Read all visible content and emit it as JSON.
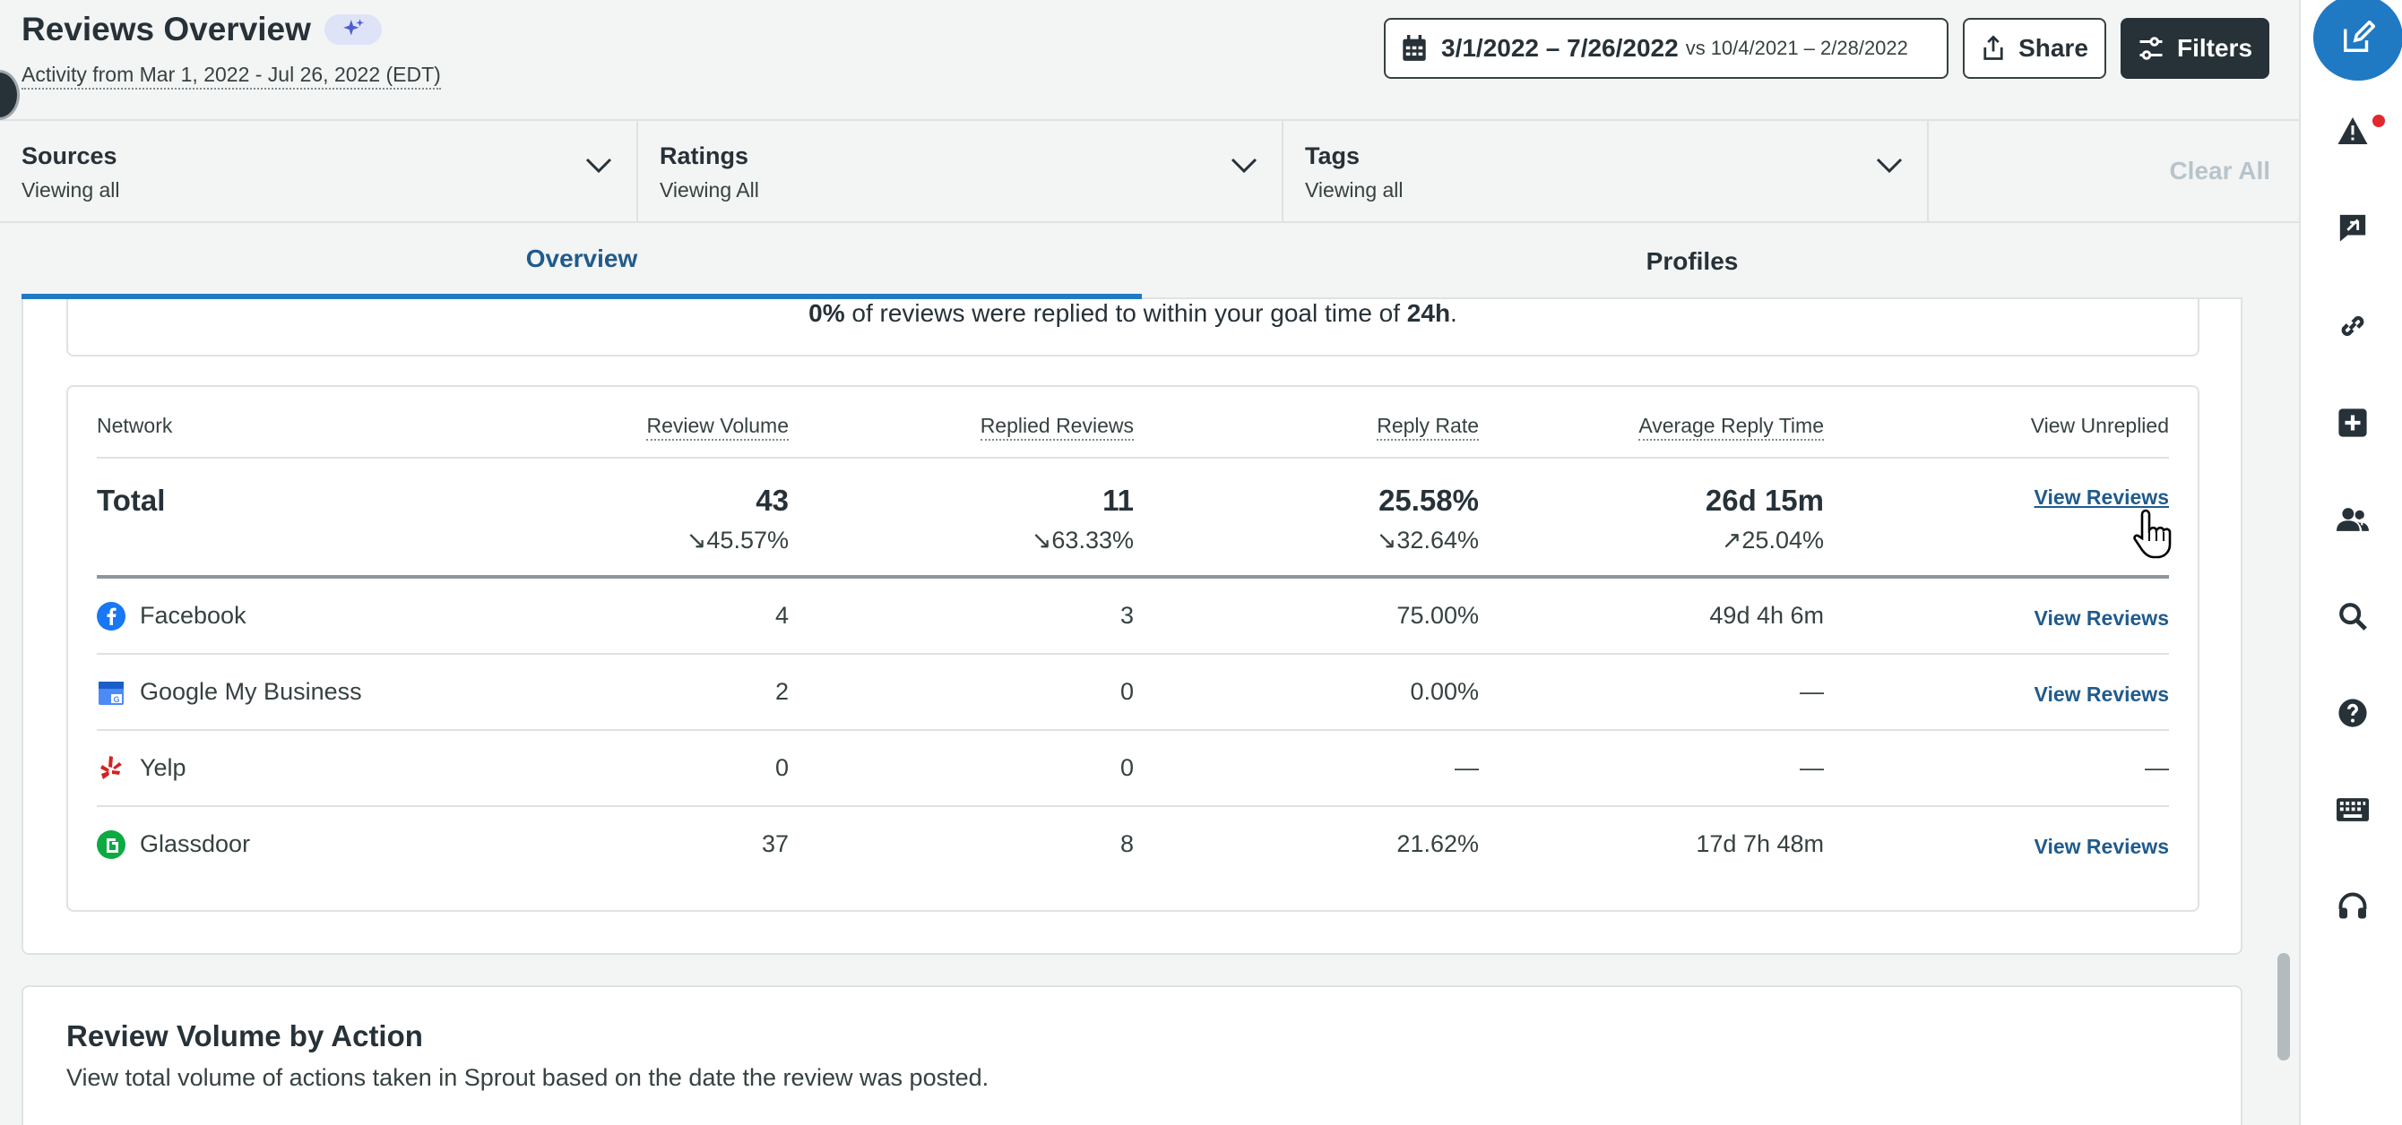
{
  "header": {
    "title": "Reviews Overview",
    "subtitle": "Activity from Mar 1, 2022 - Jul 26, 2022 (EDT)",
    "date_range": "3/1/2022 – 7/26/2022",
    "compare_prefix": "vs",
    "compare_range": "10/4/2021 – 2/28/2022",
    "share_label": "Share",
    "filters_label": "Filters"
  },
  "filters": [
    {
      "label": "Sources",
      "value": "Viewing all"
    },
    {
      "label": "Ratings",
      "value": "Viewing All"
    },
    {
      "label": "Tags",
      "value": "Viewing all"
    }
  ],
  "clear_all": "Clear All",
  "tabs": [
    {
      "label": "Overview",
      "active": true
    },
    {
      "label": "Profiles",
      "active": false
    }
  ],
  "goal": {
    "percent": "0%",
    "middle": " of reviews were replied to within your goal time of ",
    "time": "24h",
    "end": "."
  },
  "table": {
    "headers": [
      "Network",
      "Review Volume",
      "Replied Reviews",
      "Reply Rate",
      "Average Reply Time",
      "View Unreplied"
    ],
    "total": {
      "label": "Total",
      "review_volume": "43",
      "review_volume_change": "↘45.57%",
      "replied": "11",
      "replied_change": "↘63.33%",
      "reply_rate": "25.58%",
      "reply_rate_change": "↘32.64%",
      "avg_time": "26d 15m",
      "avg_time_change": "↗25.04%",
      "view": "View Reviews"
    },
    "rows": [
      {
        "network": "Facebook",
        "volume": "4",
        "replied": "3",
        "rate": "75.00%",
        "avg": "49d 4h 6m",
        "view": "View Reviews"
      },
      {
        "network": "Google My Business",
        "volume": "2",
        "replied": "0",
        "rate": "0.00%",
        "avg": "—",
        "view": "View Reviews"
      },
      {
        "network": "Yelp",
        "volume": "0",
        "replied": "0",
        "rate": "—",
        "avg": "—",
        "view": "—"
      },
      {
        "network": "Glassdoor",
        "volume": "37",
        "replied": "8",
        "rate": "21.62%",
        "avg": "17d 7h 48m",
        "view": "View Reviews"
      }
    ]
  },
  "volume_section": {
    "title": "Review Volume by Action",
    "description": "View total volume of actions taken in Sprout based on the date the review was posted."
  },
  "rail_icons": [
    "compose-icon",
    "alert-icon",
    "feather-icon",
    "link-icon",
    "add-icon",
    "users-icon",
    "search-icon",
    "help-icon",
    "keyboard-icon",
    "headset-icon"
  ],
  "colors": {
    "accent": "#2079c3",
    "link": "#205b8c",
    "dark": "#273138",
    "alert": "#e0282e"
  }
}
